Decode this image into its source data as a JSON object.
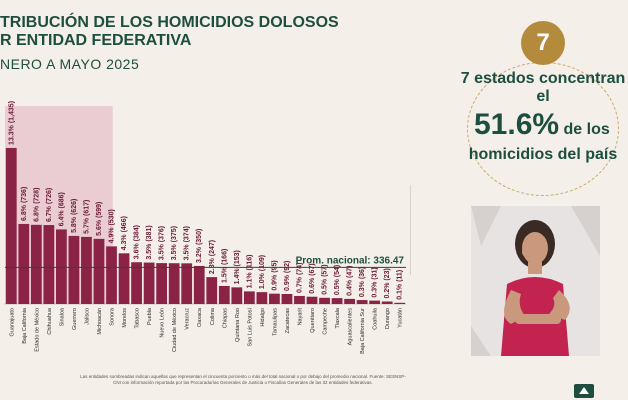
{
  "header": {
    "title_line1": "TRIBUCIÓN DE LOS HOMICIDIOS DOLOSOS",
    "title_line2": "R ENTIDAD FEDERATIVA",
    "subtitle": "NERO A MAYO 2025"
  },
  "stat": {
    "badge": "7",
    "line1": "7 estados concentran el",
    "percent": "51.6%",
    "percent_suffix": "de los",
    "line2": "homicidios del país"
  },
  "footnote": "Las entidades sombreadas indican aquellas que representan el cincuenta porciento o más del total nacional o por debajo del promedio nacional. Fuente: SESNSP-CNI con información reportada por las Procuradurías Generales de Justicia o Fiscalías Generales de las 32 entidades federativas.",
  "chart_data": {
    "type": "bar",
    "categories": [
      "Guanajuato",
      "Baja California",
      "Estado de México",
      "Chihuahua",
      "Sinaloa",
      "Guerrero",
      "Jalisco",
      "Michoacán",
      "Sonora",
      "Morelos",
      "Tabasco",
      "Puebla",
      "Nuevo León",
      "Ciudad de México",
      "Veracruz",
      "Oaxaca",
      "Colima",
      "Chiapas",
      "Quintana Roo",
      "San Luis Potosí",
      "Hidalgo",
      "Tamaulipas",
      "Zacatecas",
      "Nayarit",
      "Querétaro",
      "Campeche",
      "Tlaxcala",
      "Aguascalientes",
      "Baja California Sur",
      "Coahuila",
      "Durango",
      "Yucatán"
    ],
    "values": [
      1435,
      736,
      728,
      726,
      686,
      626,
      617,
      599,
      530,
      466,
      384,
      381,
      376,
      375,
      374,
      350,
      247,
      166,
      153,
      116,
      109,
      95,
      92,
      74,
      67,
      57,
      54,
      47,
      36,
      31,
      23,
      11
    ],
    "labels": [
      "13.3% (1,435)",
      "6.8% (736)",
      "6.8% (728)",
      "6.7% (726)",
      "6.4% (686)",
      "5.8% (626)",
      "5.7% (617)",
      "5.6% (599)",
      "4.9% (530)",
      "4.3% (466)",
      "3.6% (384)",
      "3.5% (381)",
      "3.5% (376)",
      "3.5% (375)",
      "3.5% (374)",
      "3.2% (350)",
      "2.3% (247)",
      "1.5% (166)",
      "1.4% (153)",
      "1.1% (116)",
      "1.0% (109)",
      "0.9% (95)",
      "0.9% (92)",
      "0.7% (74)",
      "0.6% (67)",
      "0.5% (57)",
      "0.5% (54)",
      "0.4% (47)",
      "0.3% (36)",
      "0.3% (31)",
      "0.2% (23)",
      "0.1% (11)"
    ],
    "highlight_count": 7,
    "average": 336.47,
    "average_label": "Prom. nacional: 336.47",
    "ylim": [
      0,
      1600
    ]
  }
}
